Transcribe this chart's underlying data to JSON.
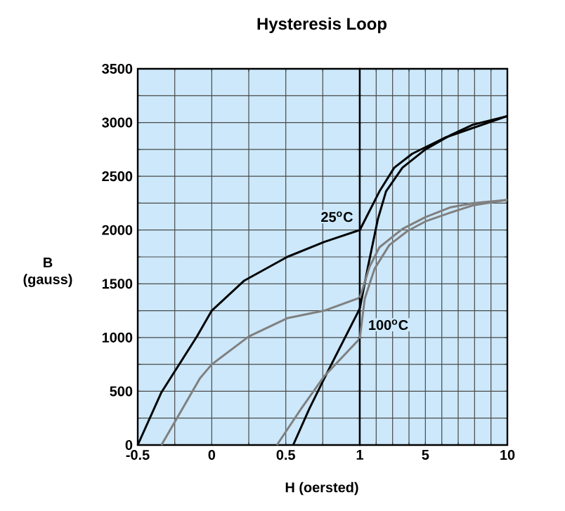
{
  "chart_data": [
    {
      "type": "line",
      "title": "Hysteresis Loop",
      "xlabel": "H (oersted)",
      "ylabel": "B (gauss)",
      "xlim": [
        -0.5,
        1
      ],
      "ylim": [
        0,
        3500
      ],
      "xticks": [
        -0.5,
        {
          "value": -0.25,
          "label": null
        },
        0,
        {
          "value": 0.25,
          "label": null
        },
        0.5,
        {
          "value": 0.75,
          "label": null
        }
      ],
      "yticks": [
        0,
        {
          "value": 250,
          "label": null
        },
        500,
        {
          "value": 750,
          "label": null
        },
        1000,
        {
          "value": 1250,
          "label": null
        },
        1500,
        {
          "value": 1750,
          "label": null
        },
        2000,
        {
          "value": 2250,
          "label": null
        },
        2500,
        {
          "value": 2750,
          "label": null
        },
        3000,
        {
          "value": 3250,
          "label": null
        },
        3500
      ],
      "grid": true,
      "series": [
        {
          "name": "25$^{o}$C",
          "color": "#000000",
          "x": [
            -0.5,
            -0.34,
            -0.1,
            0,
            0.22,
            0.51,
            0.76,
            1
          ],
          "values": [
            0,
            490,
            1010,
            1250,
            1530,
            1750,
            1890,
            2000
          ]
        },
        {
          "color": "#000000",
          "x": [
            0.55,
            0.66,
            0.76,
            1
          ],
          "values": [
            0,
            340,
            620,
            1270
          ]
        },
        {
          "color": "#808080",
          "x": [
            -0.34,
            -0.08,
            0,
            0.25,
            0.51,
            0.76,
            1
          ],
          "values": [
            0,
            620,
            750,
            1010,
            1180,
            1250,
            1370
          ]
        },
        {
          "color": "#808080",
          "x": [
            0.44,
            0.6,
            0.76,
            1
          ],
          "values": [
            0,
            330,
            640,
            990
          ]
        }
      ]
    },
    {
      "type": "line",
      "xlim": [
        1,
        10
      ],
      "ylim": [
        0,
        3500
      ],
      "xticks": [
        1,
        {
          "value": 2,
          "label": null
        },
        {
          "value": 3,
          "label": null
        },
        {
          "value": 4,
          "label": null
        },
        5,
        {
          "value": 6,
          "label": null
        },
        {
          "value": 7,
          "label": null
        },
        {
          "value": 8,
          "label": null
        },
        {
          "value": 9,
          "label": null
        },
        10
      ],
      "yticks": [
        0,
        250,
        500,
        750,
        1000,
        1250,
        1500,
        1750,
        2000,
        2250,
        2500,
        2750,
        3000,
        3250,
        3500
      ],
      "tick_labels": "x",
      "grid": true,
      "series": [
        {
          "color": "#000000",
          "x": [
            1,
            2.2,
            3.1,
            4.2,
            6.2,
            7.9,
            10
          ],
          "values": [
            2000,
            2360,
            2580,
            2710,
            2860,
            2950,
            3060
          ]
        },
        {
          "color": "#000000",
          "x": [
            1,
            1.5,
            2.1,
            2.6,
            3.6,
            5,
            6.5,
            7.9,
            10
          ],
          "values": [
            1270,
            1660,
            2100,
            2360,
            2580,
            2750,
            2880,
            2980,
            3060
          ]
        },
        {
          "color": "#808080",
          "x": [
            1,
            1.6,
            2.2,
            3.6,
            5,
            6.5,
            7.9,
            10
          ],
          "values": [
            1370,
            1660,
            1840,
            2010,
            2120,
            2210,
            2250,
            2280
          ]
        },
        {
          "name": "100$^{o}$C",
          "color": "#808080",
          "x": [
            1,
            1.3,
            1.9,
            2.8,
            3.9,
            5,
            6.5,
            7.9,
            10
          ],
          "values": [
            990,
            1360,
            1640,
            1860,
            1990,
            2080,
            2160,
            2230,
            2280
          ]
        }
      ]
    }
  ]
}
